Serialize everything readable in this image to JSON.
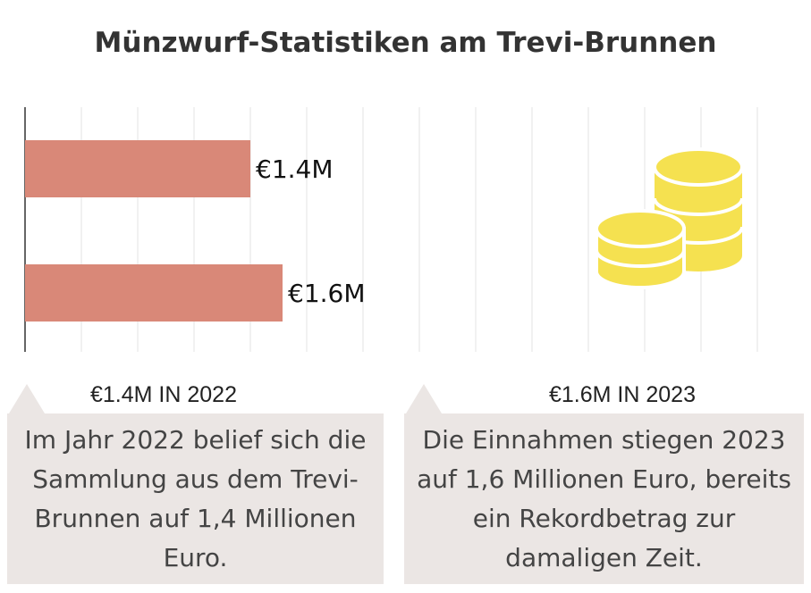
{
  "chart_data": {
    "type": "bar",
    "orientation": "horizontal",
    "title": "Münzwurf-Statistiken am Trevi-Brunnen",
    "categories": [
      "2022",
      "2023"
    ],
    "values": [
      1.4,
      1.6
    ],
    "value_labels": [
      "€1.4M",
      "€1.6M"
    ],
    "unit": "Millionen Euro",
    "bar_color": "#d98878",
    "grid": true,
    "icon": "coin-stack-icon",
    "icon_color": "#f5e150"
  },
  "annotations": [
    {
      "caption": "€1.4M IN 2022",
      "text": "Im Jahr 2022 belief sich die Sammlung aus dem Trevi-Brunnen auf 1,4 Millionen Euro."
    },
    {
      "caption": "€1.6M IN 2023",
      "text": "Die Einnahmen stiegen 2023 auf 1,6 Millionen Euro, bereits ein Rekordbetrag zur damaligen Zeit."
    }
  ]
}
